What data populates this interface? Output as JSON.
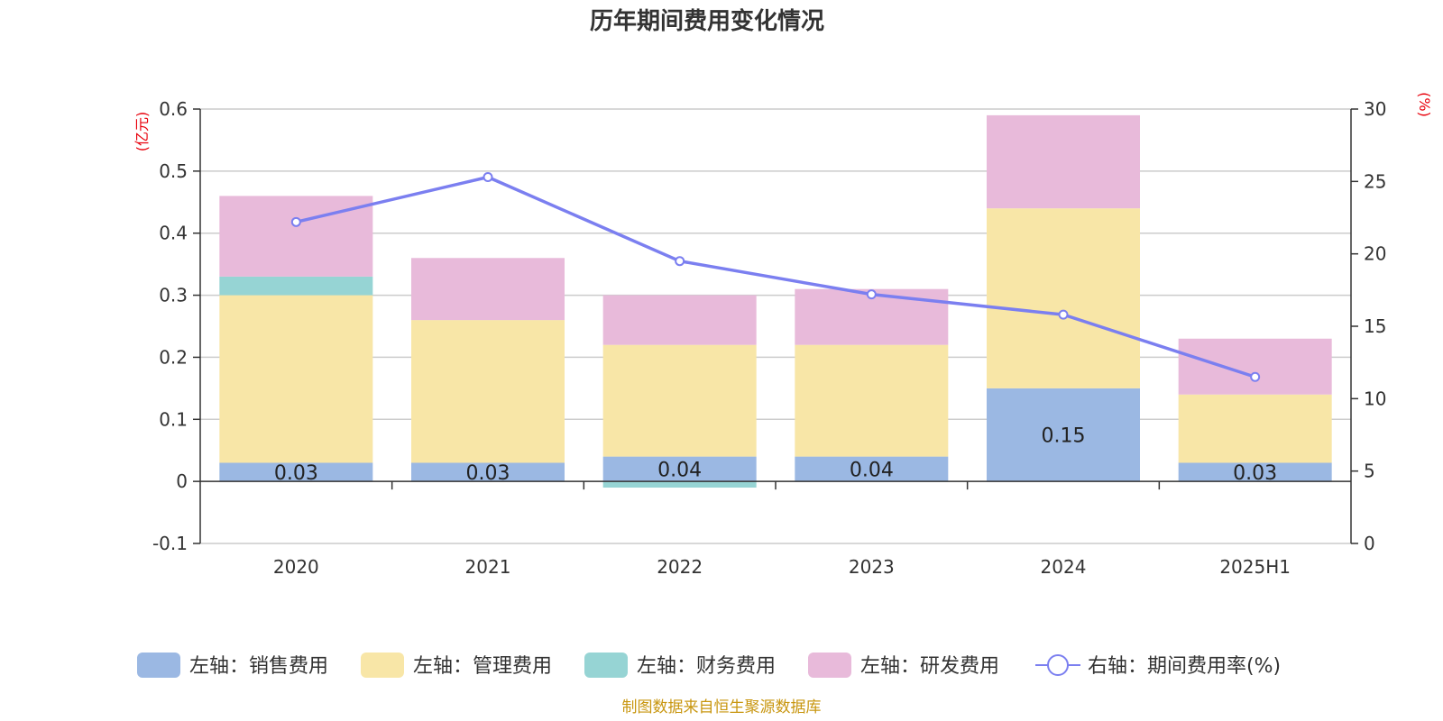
{
  "chart_data": {
    "type": "bar",
    "stacked": true,
    "title": "历年期间费用变化情况",
    "categories": [
      "2020",
      "2021",
      "2022",
      "2023",
      "2024",
      "2025H1"
    ],
    "left_axis": {
      "unit": "(亿元)",
      "ylim": [
        -0.1,
        0.6
      ],
      "ticks": [
        -0.1,
        0,
        0.1,
        0.2,
        0.3,
        0.4,
        0.5,
        0.6
      ],
      "tick_labels": [
        "-0.1",
        "0",
        "0.1",
        "0.2",
        "0.3",
        "0.4",
        "0.5",
        "0.6"
      ]
    },
    "right_axis": {
      "unit": "(%)",
      "ylim": [
        0,
        30
      ],
      "ticks": [
        0,
        5,
        10,
        15,
        20,
        25,
        30
      ],
      "tick_labels": [
        "0",
        "5",
        "10",
        "15",
        "20",
        "25",
        "30"
      ]
    },
    "series": [
      {
        "name": "左轴：销售费用",
        "type": "bar",
        "axis": "left",
        "color": "#9bb8e3",
        "values": [
          0.03,
          0.03,
          0.04,
          0.04,
          0.15,
          0.03
        ],
        "data_labels": [
          "0.03",
          "0.03",
          "0.04",
          "0.04",
          "0.15",
          "0.03"
        ]
      },
      {
        "name": "左轴：管理费用",
        "type": "bar",
        "axis": "left",
        "color": "#f8e6a7",
        "values": [
          0.27,
          0.23,
          0.18,
          0.18,
          0.29,
          0.11
        ]
      },
      {
        "name": "左轴：财务费用",
        "type": "bar",
        "axis": "left",
        "color": "#96d4d4",
        "values": [
          0.03,
          0,
          -0.01,
          0,
          0,
          0
        ]
      },
      {
        "name": "左轴：研发费用",
        "type": "bar",
        "axis": "left",
        "color": "#e8bada",
        "values": [
          0.13,
          0.1,
          0.08,
          0.09,
          0.15,
          0.09
        ]
      },
      {
        "name": "右轴：期间费用率(%)",
        "type": "line",
        "axis": "right",
        "color": "#7b7ff0",
        "values": [
          22.2,
          25.3,
          19.5,
          17.2,
          15.8,
          11.5
        ]
      }
    ],
    "grid": true,
    "legend_position": "bottom",
    "source": "制图数据来自恒生聚源数据库"
  }
}
